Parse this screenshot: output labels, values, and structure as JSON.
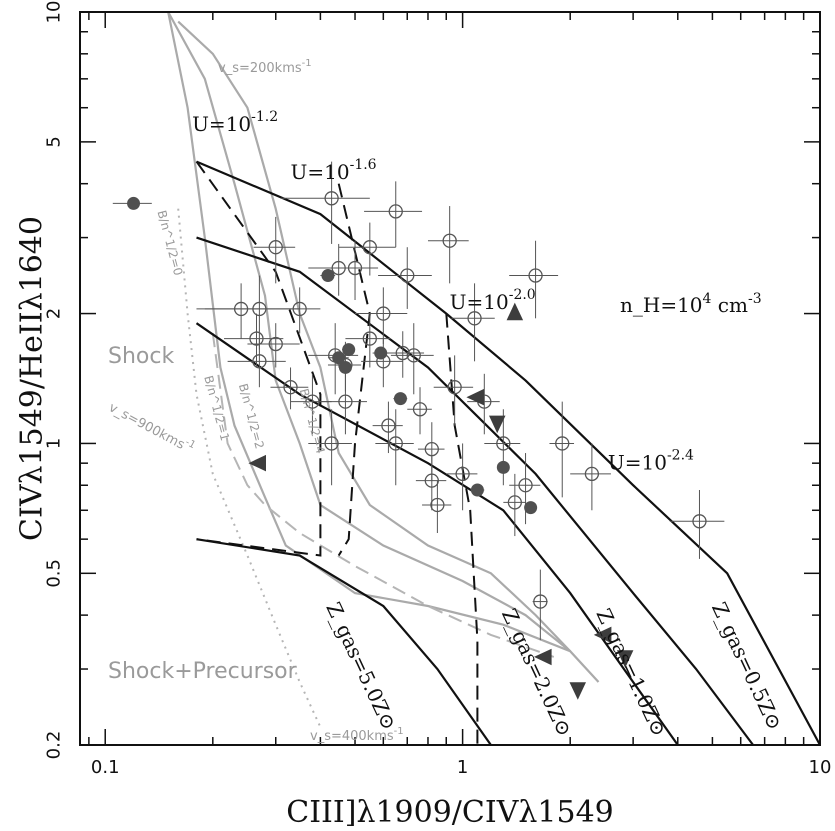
{
  "chart_data": {
    "type": "scatter",
    "title": "",
    "xlabel": "CIII]λ1909/CIVλ1549",
    "ylabel": "CIVλ1549/HeIIλ1640",
    "x_scale": "log",
    "y_scale": "log",
    "xlim": [
      0.085,
      10
    ],
    "ylim": [
      0.2,
      10
    ],
    "x_ticks": [
      {
        "value": 0.1,
        "label": "0.1"
      },
      {
        "value": 1,
        "label": "1"
      },
      {
        "value": 10,
        "label": "10"
      }
    ],
    "y_ticks": [
      {
        "value": 0.2,
        "label": "0.2"
      },
      {
        "value": 0.5,
        "label": "0.5"
      },
      {
        "value": 1,
        "label": "1"
      },
      {
        "value": 2,
        "label": "2"
      },
      {
        "value": 5,
        "label": "5"
      },
      {
        "value": 10,
        "label": "10"
      }
    ],
    "grid": false,
    "annotations": {
      "density": "n_H=10^4 cm^-3",
      "u_labels": [
        {
          "text": "U=10^-1.2",
          "x": 0.175,
          "y": 5.3
        },
        {
          "text": "U=10^-1.6",
          "x": 0.33,
          "y": 4.1
        },
        {
          "text": "U=10^-2.0",
          "x": 0.92,
          "y": 2.05
        },
        {
          "text": "U=10^-2.4",
          "x": 2.55,
          "y": 0.87
        }
      ],
      "z_labels": [
        {
          "text": "Z_gas=5.0Z⊙",
          "x": 0.5,
          "y": 0.3,
          "angle": 65
        },
        {
          "text": "Z_gas=2.0Z⊙",
          "x": 1.55,
          "y": 0.29,
          "angle": 65
        },
        {
          "text": "Z_gas=1.0Z⊙",
          "x": 2.85,
          "y": 0.29,
          "angle": 65
        },
        {
          "text": "Z_gas=0.5Z⊙",
          "x": 6.0,
          "y": 0.3,
          "angle": 65
        }
      ],
      "shock_label": "Shock",
      "shock_precursor_label": "Shock+Precursor",
      "vs200": "v_s=200kms^-1",
      "vs900": "v_s=900kms^-1",
      "vs400": "v_s=400kms^-1",
      "b_labels": [
        {
          "text": "B/n^1/2=0",
          "x": 0.148,
          "y": 2.9,
          "angle": 75
        },
        {
          "text": "B/n^1/2=1",
          "x": 0.2,
          "y": 1.2,
          "angle": 75
        },
        {
          "text": "B/n^1/2=2",
          "x": 0.25,
          "y": 1.15,
          "angle": 75
        },
        {
          "text": "B/n^1/2=4",
          "x": 0.37,
          "y": 1.12,
          "angle": 75
        }
      ]
    },
    "series": [
      {
        "kind": "open-circles",
        "points": [
          [
            0.3,
            2.85,
            0.04,
            0.5
          ],
          [
            0.24,
            2.05,
            0.06,
            0.3
          ],
          [
            0.27,
            2.05,
            0.08,
            0.4
          ],
          [
            0.265,
            1.75,
            0.05,
            0.25
          ],
          [
            0.27,
            1.55,
            0.05,
            0.2
          ],
          [
            0.3,
            1.7,
            0.05,
            0.2
          ],
          [
            0.33,
            1.35,
            0.04,
            0.15
          ],
          [
            0.35,
            2.05,
            0.05,
            0.25
          ],
          [
            0.38,
            1.25,
            0.05,
            0.2
          ],
          [
            0.43,
            3.7,
            0.12,
            0.8
          ],
          [
            0.44,
            1.6,
            0.07,
            0.3
          ],
          [
            0.45,
            2.55,
            0.08,
            0.35
          ],
          [
            0.5,
            2.55,
            0.08,
            0.4
          ],
          [
            0.55,
            2.85,
            0.1,
            0.4
          ],
          [
            0.65,
            3.45,
            0.12,
            0.6
          ],
          [
            0.47,
            1.25,
            0.07,
            0.2
          ],
          [
            0.43,
            1.0,
            0.06,
            0.2
          ],
          [
            0.47,
            1.52,
            0.05,
            0.2
          ],
          [
            0.55,
            1.75,
            0.08,
            0.25
          ],
          [
            0.6,
            1.55,
            0.08,
            0.2
          ],
          [
            0.6,
            2.0,
            0.1,
            0.3
          ],
          [
            0.65,
            1.0,
            0.08,
            0.2
          ],
          [
            0.62,
            1.1,
            0.06,
            0.15
          ],
          [
            0.68,
            1.62,
            0.1,
            0.2
          ],
          [
            0.7,
            2.45,
            0.12,
            0.4
          ],
          [
            0.73,
            1.6,
            0.1,
            0.3
          ],
          [
            0.76,
            1.2,
            0.06,
            0.15
          ],
          [
            0.82,
            0.97,
            0.07,
            0.15
          ],
          [
            0.82,
            0.82,
            0.08,
            0.12
          ],
          [
            0.85,
            0.72,
            0.08,
            0.1
          ],
          [
            0.92,
            2.95,
            0.12,
            0.6
          ],
          [
            0.95,
            1.35,
            0.12,
            0.25
          ],
          [
            1.0,
            0.85,
            0.1,
            0.15
          ],
          [
            1.08,
            1.95,
            0.15,
            0.4
          ],
          [
            1.15,
            1.25,
            0.12,
            0.2
          ],
          [
            1.3,
            1.0,
            0.15,
            0.2
          ],
          [
            1.4,
            0.73,
            0.1,
            0.12
          ],
          [
            1.5,
            0.8,
            0.15,
            0.15
          ],
          [
            1.6,
            2.45,
            0.25,
            0.5
          ],
          [
            1.65,
            0.43,
            0.08,
            0.08
          ],
          [
            1.9,
            1.0,
            0.15,
            0.25
          ],
          [
            2.3,
            0.85,
            0.3,
            0.15
          ],
          [
            4.6,
            0.66,
            0.8,
            0.12
          ]
        ]
      },
      {
        "kind": "filled-circles",
        "points": [
          [
            0.12,
            3.6,
            0.015,
            0
          ],
          [
            0.42,
            2.45,
            0.02,
            0
          ],
          [
            0.45,
            1.58,
            0.03,
            0
          ],
          [
            0.47,
            1.5,
            0.02,
            0
          ],
          [
            0.48,
            1.65,
            0.02,
            0
          ],
          [
            0.59,
            1.62,
            0.03,
            0
          ],
          [
            0.67,
            1.27,
            0.03,
            0
          ],
          [
            1.1,
            0.78,
            0.05,
            0
          ],
          [
            1.3,
            0.88,
            0.05,
            0
          ],
          [
            1.55,
            0.71,
            0.05,
            0
          ]
        ]
      },
      {
        "kind": "triangles",
        "points": [
          [
            1.4,
            2.0,
            "up"
          ],
          [
            1.1,
            1.28,
            "left"
          ],
          [
            1.25,
            1.12,
            "down"
          ],
          [
            0.27,
            0.9,
            "left"
          ],
          [
            1.7,
            0.32,
            "left"
          ],
          [
            2.1,
            0.27,
            "down"
          ],
          [
            2.5,
            0.36,
            "left"
          ],
          [
            2.85,
            0.32,
            "down"
          ]
        ]
      }
    ],
    "model_grid": {
      "u_tracks": [
        [
          [
            0.18,
            4.5
          ],
          [
            0.4,
            3.4
          ],
          [
            0.9,
            2.0
          ],
          [
            1.5,
            1.4
          ],
          [
            3.0,
            0.8
          ],
          [
            5.5,
            0.5
          ],
          [
            10.0,
            0.2
          ]
        ],
        [
          [
            0.18,
            3.0
          ],
          [
            0.35,
            2.5
          ],
          [
            0.8,
            1.5
          ],
          [
            1.6,
            0.85
          ],
          [
            3.0,
            0.45
          ],
          [
            4.5,
            0.3
          ],
          [
            6.5,
            0.2
          ]
        ],
        [
          [
            0.18,
            1.9
          ],
          [
            0.35,
            1.3
          ],
          [
            0.8,
            0.9
          ],
          [
            1.3,
            0.7
          ],
          [
            2.0,
            0.45
          ],
          [
            3.0,
            0.28
          ],
          [
            4.0,
            0.2
          ]
        ],
        [
          [
            0.18,
            0.6
          ],
          [
            0.35,
            0.55
          ],
          [
            0.6,
            0.42
          ],
          [
            0.85,
            0.3
          ],
          [
            1.2,
            0.2
          ]
        ]
      ],
      "z_tracks": [
        [
          [
            0.18,
            4.5
          ],
          [
            0.3,
            2.5
          ],
          [
            0.4,
            1.3
          ],
          [
            0.4,
            0.55
          ],
          [
            0.18,
            0.6
          ]
        ],
        [
          [
            0.45,
            4.0
          ],
          [
            0.55,
            2.0
          ],
          [
            0.5,
            1.0
          ],
          [
            0.48,
            0.6
          ],
          [
            0.45,
            0.55
          ]
        ],
        [
          [
            0.9,
            2.0
          ],
          [
            0.95,
            1.1
          ],
          [
            1.05,
            0.7
          ],
          [
            1.1,
            0.35
          ],
          [
            1.1,
            0.2
          ]
        ]
      ],
      "shock_tracks": [
        [
          [
            0.15,
            10
          ],
          [
            0.17,
            6
          ],
          [
            0.19,
            3.0
          ],
          [
            0.21,
            1.5
          ],
          [
            0.23,
            1.1
          ],
          [
            0.28,
            0.75
          ],
          [
            0.32,
            0.58
          ],
          [
            0.5,
            0.45
          ],
          [
            0.8,
            0.42
          ],
          [
            1.3,
            0.38
          ],
          [
            2.0,
            0.33
          ],
          [
            2.4,
            0.28
          ]
        ],
        [
          [
            0.15,
            10
          ],
          [
            0.19,
            7
          ],
          [
            0.23,
            4.0
          ],
          [
            0.28,
            2.2
          ],
          [
            0.3,
            1.4
          ],
          [
            0.35,
            1.0
          ],
          [
            0.4,
            0.72
          ],
          [
            0.6,
            0.58
          ],
          [
            1.0,
            0.48
          ],
          [
            1.5,
            0.4
          ],
          [
            2.0,
            0.33
          ]
        ],
        [
          [
            0.16,
            9.5
          ],
          [
            0.2,
            8
          ],
          [
            0.25,
            6
          ],
          [
            0.3,
            3.5
          ],
          [
            0.35,
            2.0
          ],
          [
            0.4,
            1.5
          ],
          [
            0.45,
            0.95
          ],
          [
            0.55,
            0.72
          ],
          [
            0.8,
            0.58
          ],
          [
            1.2,
            0.5
          ],
          [
            1.6,
            0.4
          ],
          [
            2.0,
            0.33
          ]
        ]
      ],
      "precursor_tracks": [
        [
          [
            0.2,
            1.8
          ],
          [
            0.22,
            1.0
          ],
          [
            0.25,
            0.8
          ],
          [
            0.28,
            0.72
          ],
          [
            0.35,
            0.62
          ],
          [
            0.5,
            0.52
          ],
          [
            0.8,
            0.42
          ],
          [
            1.2,
            0.36
          ],
          [
            1.8,
            0.32
          ]
        ],
        [
          [
            0.16,
            3.5
          ],
          [
            0.17,
            2.0
          ],
          [
            0.18,
            1.3
          ],
          [
            0.2,
            0.85
          ],
          [
            0.25,
            0.55
          ],
          [
            0.3,
            0.38
          ],
          [
            0.35,
            0.28
          ],
          [
            0.4,
            0.22
          ]
        ]
      ]
    }
  }
}
